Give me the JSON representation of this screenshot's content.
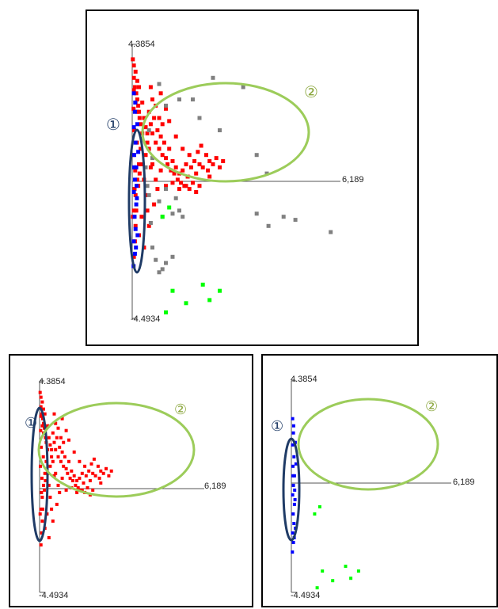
{
  "chart_data": [
    {
      "type": "scatter",
      "panel": "top-center",
      "y_max_label": "4.3854",
      "y_min_label": "-4.4934",
      "x_max_label": "6,189",
      "ylim": [
        -4.4934,
        4.3854
      ],
      "xlim": [
        0,
        6.189
      ],
      "grid": false,
      "legend": "none",
      "colors": {
        "red": "#ff0000",
        "blue": "#0000ff",
        "gray": "#808080",
        "green": "#00ff00",
        "ellipse_dark": "#1f3b66",
        "ellipse_green": "#9ccc5a"
      },
      "annotations": [
        {
          "id": "1",
          "text": "①",
          "color": "#1f3b66"
        },
        {
          "id": "2",
          "text": "②",
          "color": "#8aa63c"
        }
      ],
      "series": [
        {
          "color": "red",
          "points": [
            [
              0.02,
              3.9
            ],
            [
              0.05,
              3.7
            ],
            [
              0.1,
              3.5
            ],
            [
              0.15,
              3.2
            ],
            [
              0.2,
              3.0
            ],
            [
              0.05,
              3.3
            ],
            [
              0.08,
              3.0
            ],
            [
              0.12,
              2.8
            ],
            [
              0.15,
              2.6
            ],
            [
              0.18,
              2.4
            ],
            [
              0.2,
              2.2
            ],
            [
              0.22,
              2.0
            ],
            [
              0.25,
              1.8
            ],
            [
              0.05,
              2.9
            ],
            [
              0.1,
              2.5
            ],
            [
              0.15,
              2.2
            ],
            [
              0.3,
              2.5
            ],
            [
              0.35,
              2.0
            ],
            [
              0.4,
              1.7
            ],
            [
              0.45,
              1.5
            ],
            [
              0.5,
              2.2
            ],
            [
              0.55,
              1.8
            ],
            [
              0.6,
              1.5
            ],
            [
              0.65,
              2.0
            ],
            [
              0.7,
              1.2
            ],
            [
              0.75,
              1.6
            ],
            [
              0.8,
              1.0
            ],
            [
              0.85,
              1.4
            ],
            [
              0.9,
              0.8
            ],
            [
              0.95,
              1.2
            ],
            [
              1.0,
              0.7
            ],
            [
              1.05,
              0.5
            ],
            [
              1.1,
              1.0
            ],
            [
              1.15,
              0.3
            ],
            [
              1.2,
              0.6
            ],
            [
              1.25,
              0.2
            ],
            [
              1.3,
              0.4
            ],
            [
              1.35,
              0.0
            ],
            [
              1.4,
              0.2
            ],
            [
              1.45,
              -0.1
            ],
            [
              1.5,
              0.3
            ],
            [
              1.55,
              -0.2
            ],
            [
              1.6,
              0.5
            ],
            [
              1.65,
              0.1
            ],
            [
              1.7,
              -0.3
            ],
            [
              1.75,
              0.4
            ],
            [
              1.8,
              -0.1
            ],
            [
              1.85,
              0.6
            ],
            [
              1.9,
              0.2
            ],
            [
              1.95,
              0.9
            ],
            [
              2.0,
              0.5
            ],
            [
              2.05,
              1.1
            ],
            [
              2.1,
              0.4
            ],
            [
              2.2,
              0.8
            ],
            [
              2.25,
              0.3
            ],
            [
              2.3,
              0.6
            ],
            [
              2.4,
              0.5
            ],
            [
              2.5,
              0.7
            ],
            [
              2.6,
              0.4
            ],
            [
              2.7,
              0.6
            ],
            [
              0.8,
              2.0
            ],
            [
              0.9,
              1.8
            ],
            [
              1.0,
              2.3
            ],
            [
              1.1,
              1.9
            ],
            [
              0.6,
              2.6
            ],
            [
              0.7,
              2.4
            ],
            [
              0.5,
              1.0
            ],
            [
              0.6,
              0.5
            ],
            [
              0.7,
              0.0
            ],
            [
              0.75,
              -0.3
            ],
            [
              0.85,
              0.3
            ],
            [
              1.0,
              -0.2
            ],
            [
              1.2,
              -0.1
            ],
            [
              1.4,
              -0.3
            ],
            [
              1.6,
              -0.2
            ],
            [
              0.3,
              0.5
            ],
            [
              0.35,
              0.0
            ],
            [
              0.4,
              -0.5
            ],
            [
              0.45,
              -1.0
            ],
            [
              0.5,
              -1.5
            ],
            [
              0.3,
              1.5
            ],
            [
              0.25,
              1.0
            ],
            [
              0.2,
              0.5
            ],
            [
              0.15,
              0.0
            ],
            [
              0.1,
              -0.5
            ],
            [
              0.05,
              -1.0
            ],
            [
              0.1,
              -1.5
            ],
            [
              0.08,
              -2.0
            ],
            [
              0.05,
              -2.5
            ],
            [
              0.02,
              -1.2
            ],
            [
              0.03,
              0.8
            ],
            [
              0.06,
              1.6
            ],
            [
              0.04,
              2.3
            ],
            [
              0.07,
              -0.3
            ],
            [
              0.09,
              0.3
            ],
            [
              0.12,
              -1.0
            ],
            [
              0.14,
              1.2
            ],
            [
              0.18,
              -0.2
            ],
            [
              0.22,
              0.2
            ],
            [
              1.3,
              1.4
            ],
            [
              1.5,
              1.0
            ],
            [
              1.7,
              0.8
            ],
            [
              2.0,
              -0.2
            ],
            [
              2.3,
              0.1
            ],
            [
              1.9,
              -0.4
            ],
            [
              0.4,
              0.8
            ],
            [
              0.45,
              1.2
            ],
            [
              0.55,
              0.4
            ],
            [
              0.65,
              -0.8
            ],
            [
              0.2,
              -1.8
            ],
            [
              0.28,
              -1.2
            ],
            [
              0.35,
              -2.2
            ],
            [
              0.55,
              3.0
            ],
            [
              0.85,
              2.8
            ]
          ]
        },
        {
          "color": "blue",
          "points": [
            [
              0.05,
              2.8
            ],
            [
              0.08,
              2.2
            ],
            [
              0.05,
              1.7
            ],
            [
              0.1,
              1.2
            ],
            [
              0.06,
              0.8
            ],
            [
              0.12,
              0.4
            ],
            [
              0.08,
              0.0
            ],
            [
              0.05,
              -0.4
            ],
            [
              0.12,
              -0.8
            ],
            [
              0.07,
              -1.2
            ],
            [
              0.1,
              -1.6
            ],
            [
              0.05,
              -2.0
            ],
            [
              0.08,
              -2.4
            ],
            [
              0.15,
              1.8
            ],
            [
              0.18,
              0.9
            ],
            [
              0.14,
              -0.6
            ],
            [
              0.16,
              -1.8
            ],
            [
              0.04,
              -2.8
            ],
            [
              0.09,
              2.5
            ],
            [
              0.11,
              -2.2
            ],
            [
              0.13,
              -0.2
            ],
            [
              0.06,
              0.4
            ]
          ]
        },
        {
          "color": "gray",
          "points": [
            [
              0.8,
              3.1
            ],
            [
              1.0,
              2.4
            ],
            [
              1.4,
              2.6
            ],
            [
              1.8,
              2.6
            ],
            [
              2.4,
              3.3
            ],
            [
              2.0,
              2.0
            ],
            [
              2.6,
              1.6
            ],
            [
              3.3,
              3.0
            ],
            [
              3.7,
              0.8
            ],
            [
              4.0,
              0.2
            ],
            [
              3.7,
              -1.1
            ],
            [
              4.05,
              -1.5
            ],
            [
              4.5,
              -1.2
            ],
            [
              4.85,
              -1.3
            ],
            [
              5.9,
              -1.7
            ],
            [
              0.8,
              -0.7
            ],
            [
              0.9,
              -1.2
            ],
            [
              1.0,
              -0.3
            ],
            [
              1.2,
              -1.1
            ],
            [
              0.5,
              -0.5
            ],
            [
              0.55,
              -1.4
            ],
            [
              0.6,
              -2.2
            ],
            [
              0.7,
              -2.6
            ],
            [
              0.8,
              -3.0
            ],
            [
              0.9,
              -2.9
            ],
            [
              1.0,
              -2.7
            ],
            [
              1.2,
              -2.5
            ],
            [
              1.3,
              -0.6
            ],
            [
              1.4,
              -1.0
            ],
            [
              1.5,
              -1.2
            ],
            [
              0.4,
              0.4
            ],
            [
              0.45,
              -0.2
            ],
            [
              0.5,
              1.6
            ],
            [
              0.6,
              0.7
            ]
          ]
        },
        {
          "color": "green",
          "points": [
            [
              0.9,
              -1.2
            ],
            [
              1.1,
              -0.9
            ],
            [
              1.2,
              -3.6
            ],
            [
              2.1,
              -3.4
            ],
            [
              2.6,
              -3.6
            ],
            [
              2.3,
              -3.9
            ],
            [
              1.6,
              -4.0
            ],
            [
              1.0,
              -4.3
            ]
          ]
        }
      ]
    },
    {
      "type": "scatter",
      "panel": "bottom-left",
      "y_max_label": "4.3854",
      "y_min_label": "-4.4934",
      "x_max_label": "6,189",
      "ylim": [
        -4.4934,
        4.3854
      ],
      "xlim": [
        0,
        6.189
      ],
      "grid": false,
      "legend": "none",
      "annotations": [
        {
          "id": "1",
          "text": "①",
          "color": "#1f3b66"
        },
        {
          "id": "2",
          "text": "②",
          "color": "#8aa63c"
        }
      ],
      "series": [
        {
          "color": "red",
          "points": "same as top panel red series"
        }
      ]
    },
    {
      "type": "scatter",
      "panel": "bottom-right",
      "y_max_label": "4.3854",
      "y_min_label": "-4.4934",
      "x_max_label": "6,189",
      "ylim": [
        -4.4934,
        4.3854
      ],
      "xlim": [
        0,
        6.189
      ],
      "grid": false,
      "legend": "none",
      "annotations": [
        {
          "id": "1",
          "text": "①",
          "color": "#1f3b66"
        },
        {
          "id": "2",
          "text": "②",
          "color": "#8aa63c"
        }
      ],
      "series": [
        {
          "color": "blue",
          "points": "same as top panel blue series"
        },
        {
          "color": "green",
          "points": "same as top panel green series"
        }
      ]
    }
  ]
}
